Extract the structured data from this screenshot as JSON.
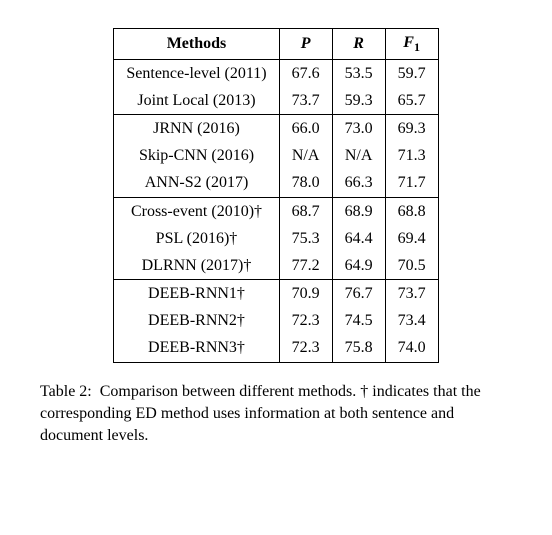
{
  "table": {
    "headers": {
      "methods": "Methods",
      "p": "P",
      "r": "R",
      "f1_main": "F",
      "f1_sub": "1"
    },
    "groups": [
      [
        {
          "method": "Sentence-level (2011)",
          "p": "67.6",
          "r": "53.5",
          "f1": "59.7"
        },
        {
          "method": "Joint Local (2013)",
          "p": "73.7",
          "r": "59.3",
          "f1": "65.7"
        }
      ],
      [
        {
          "method": "JRNN (2016)",
          "p": "66.0",
          "r": "73.0",
          "f1": "69.3"
        },
        {
          "method": "Skip-CNN (2016)",
          "p": "N/A",
          "r": "N/A",
          "f1": "71.3"
        },
        {
          "method": "ANN-S2 (2017)",
          "p": "78.0",
          "r": "66.3",
          "f1": "71.7"
        }
      ],
      [
        {
          "method": "Cross-event (2010)†",
          "p": "68.7",
          "r": "68.9",
          "f1": "68.8"
        },
        {
          "method": "PSL (2016)†",
          "p": "75.3",
          "r": "64.4",
          "f1": "69.4"
        },
        {
          "method": "DLRNN (2017)†",
          "p": "77.2",
          "r": "64.9",
          "f1": "70.5"
        }
      ],
      [
        {
          "method": "DEEB-RNN1†",
          "p": "70.9",
          "r": "76.7",
          "f1": "73.7"
        },
        {
          "method": "DEEB-RNN2†",
          "p": "72.3",
          "r": "74.5",
          "f1": "73.4"
        },
        {
          "method": "DEEB-RNN3†",
          "p": "72.3",
          "r": "75.8",
          "f1": "74.0"
        }
      ]
    ]
  },
  "caption": {
    "label": "Table 2:",
    "text_line1": "Comparison between different methods.",
    "text_line2": "† indicates that the corresponding ED method uses information at both sentence and document levels."
  }
}
